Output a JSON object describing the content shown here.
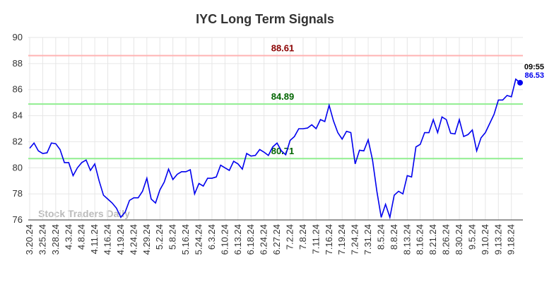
{
  "chart_data": {
    "type": "line",
    "title": "IYC Long Term Signals",
    "watermark": "Stock Traders Daily",
    "categories": [
      "3.20.24",
      null,
      null,
      "3.25.24",
      null,
      null,
      "3.28.24",
      null,
      null,
      "4.3.24",
      null,
      null,
      "4.8.24",
      null,
      null,
      "4.11.24",
      null,
      null,
      "4.16.24",
      null,
      null,
      "4.19.24",
      null,
      null,
      "4.24.24",
      null,
      null,
      "4.29.24",
      null,
      null,
      "5.2.24",
      null,
      null,
      "5.8.24",
      null,
      null,
      "5.16.24",
      null,
      null,
      "5.24.24",
      null,
      null,
      "6.3.24",
      null,
      null,
      "6.10.24",
      null,
      null,
      "6.13.24",
      null,
      null,
      "6.18.24",
      null,
      null,
      "6.24.24",
      null,
      null,
      "6.27.24",
      null,
      null,
      "7.2.24",
      null,
      null,
      "7.8.24",
      null,
      null,
      "7.11.24",
      null,
      null,
      "7.16.24",
      null,
      null,
      "7.19.24",
      null,
      null,
      "7.24.24",
      null,
      null,
      "7.31.24",
      null,
      null,
      "8.5.24",
      null,
      null,
      "8.8.24",
      null,
      null,
      "8.13.24",
      null,
      null,
      "8.16.24",
      null,
      null,
      "8.21.24",
      null,
      null,
      "8.26.24",
      null,
      null,
      "8.30.24",
      null,
      null,
      "9.5.24",
      null,
      null,
      "9.10.24",
      null,
      null,
      "9.13.24",
      null,
      null,
      "9.18.24",
      null,
      null
    ],
    "series": [
      {
        "name": "IYC",
        "color": "#0000ee",
        "values": [
          81.5,
          81.9,
          81.3,
          81.1,
          81.15,
          81.9,
          81.85,
          81.4,
          80.4,
          80.4,
          79.4,
          80.0,
          80.4,
          80.6,
          79.8,
          80.3,
          79.0,
          77.9,
          77.6,
          77.3,
          76.9,
          76.2,
          76.6,
          77.5,
          77.7,
          77.7,
          78.2,
          79.2,
          77.6,
          77.3,
          78.3,
          78.9,
          79.9,
          79.1,
          79.5,
          79.7,
          79.7,
          79.85,
          78.0,
          78.8,
          78.6,
          79.2,
          79.2,
          79.3,
          80.2,
          80.0,
          79.8,
          80.5,
          80.3,
          79.9,
          81.1,
          80.9,
          80.95,
          81.4,
          81.2,
          80.95,
          81.6,
          81.9,
          81.3,
          81.0,
          82.1,
          82.4,
          83.0,
          83.0,
          83.05,
          83.3,
          83.0,
          83.7,
          83.55,
          84.8,
          83.6,
          82.7,
          82.2,
          82.8,
          82.7,
          80.3,
          81.35,
          81.3,
          82.15,
          80.6,
          78.2,
          76.2,
          77.2,
          76.2,
          77.9,
          78.2,
          78.0,
          79.4,
          79.3,
          81.6,
          81.8,
          82.7,
          82.7,
          83.7,
          82.7,
          83.9,
          83.7,
          82.65,
          82.6,
          83.7,
          82.4,
          82.55,
          82.9,
          81.3,
          82.3,
          82.7,
          83.4,
          84.1,
          85.2,
          85.2,
          85.55,
          85.45,
          86.8,
          86.53
        ]
      }
    ],
    "last_time": "09:55",
    "levels": [
      {
        "value": 88.61,
        "color": "#ffb3b3",
        "label_color": "#8b0000"
      },
      {
        "value": 84.89,
        "color": "#90ee90",
        "label_color": "#006400"
      },
      {
        "value": 80.71,
        "color": "#90ee90",
        "label_color": "#006400"
      }
    ],
    "ylim": [
      76,
      90
    ],
    "yticks": [
      76,
      78,
      80,
      82,
      84,
      86,
      88,
      90
    ],
    "grid": true
  }
}
